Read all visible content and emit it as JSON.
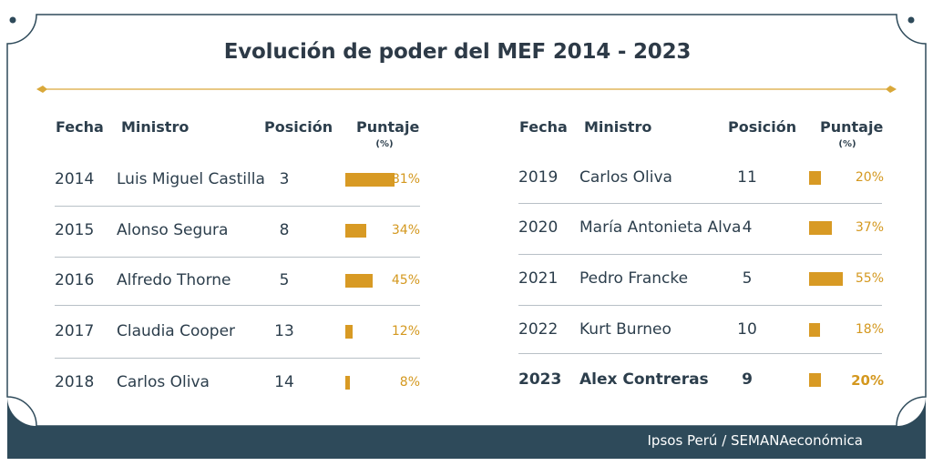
{
  "header": {
    "title": "Evolución de poder del MEF 2014 - 2023"
  },
  "columns": {
    "fecha": "Fecha",
    "ministro": "Ministro",
    "posicion": "Posición",
    "puntaje": "Puntaje",
    "puntaje_unit": "(%)"
  },
  "footer": {
    "source": "Ipsos Perú / SEMANAeconómica"
  },
  "colors": {
    "frame": "#2e4a5a",
    "bar": "#d89a24",
    "accent_line": "#d9a83a"
  },
  "chart_data": {
    "type": "table",
    "title": "Evolución de poder del MEF 2014 - 2023",
    "rows": [
      {
        "fecha": "2014",
        "ministro": "Luis Miguel Castilla",
        "posicion": "3",
        "puntaje": 81,
        "puntaje_label": "81%",
        "highlight": false
      },
      {
        "fecha": "2015",
        "ministro": "Alonso Segura",
        "posicion": "8",
        "puntaje": 34,
        "puntaje_label": "34%",
        "highlight": false
      },
      {
        "fecha": "2016",
        "ministro": "Alfredo Thorne",
        "posicion": "5",
        "puntaje": 45,
        "puntaje_label": "45%",
        "highlight": false
      },
      {
        "fecha": "2017",
        "ministro": "Claudia Cooper",
        "posicion": "13",
        "puntaje": 12,
        "puntaje_label": "12%",
        "highlight": false
      },
      {
        "fecha": "2018",
        "ministro": "Carlos Oliva",
        "posicion": "14",
        "puntaje": 8,
        "puntaje_label": "8%",
        "highlight": false
      },
      {
        "fecha": "2019",
        "ministro": "Carlos Oliva",
        "posicion": "11",
        "puntaje": 20,
        "puntaje_label": "20%",
        "highlight": false
      },
      {
        "fecha": "2020",
        "ministro": "María Antonieta Alva",
        "posicion": "4",
        "puntaje": 37,
        "puntaje_label": "37%",
        "highlight": false
      },
      {
        "fecha": "2021",
        "ministro": "Pedro Francke",
        "posicion": "5",
        "puntaje": 55,
        "puntaje_label": "55%",
        "highlight": false
      },
      {
        "fecha": "2022",
        "ministro": "Kurt Burneo",
        "posicion": "10",
        "puntaje": 18,
        "puntaje_label": "18%",
        "highlight": false
      },
      {
        "fecha": "2023",
        "ministro": "Alex Contreras",
        "posicion": "9",
        "puntaje": 20,
        "puntaje_label": "20%",
        "highlight": true
      }
    ]
  }
}
